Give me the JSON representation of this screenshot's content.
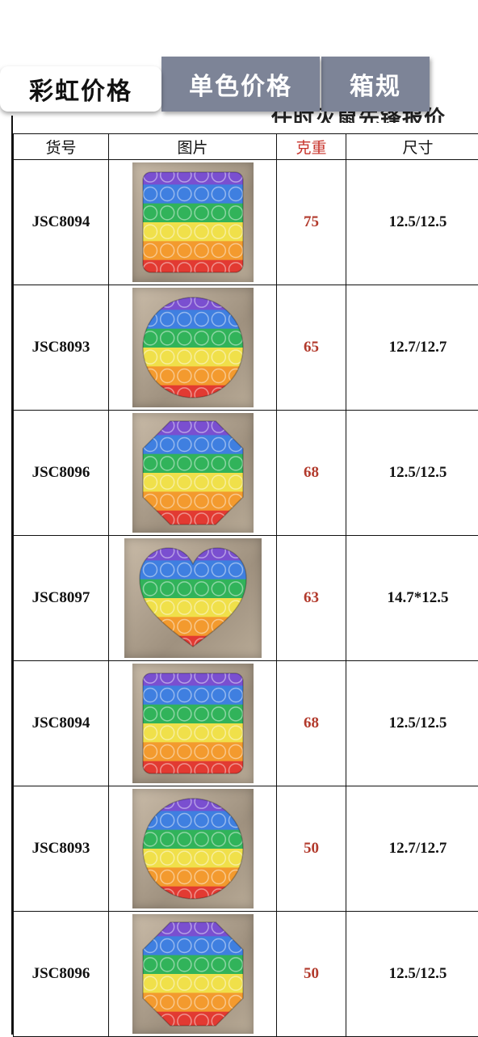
{
  "tabs": [
    {
      "label": "彩虹价格",
      "active": true
    },
    {
      "label": "单色价格",
      "active": false
    },
    {
      "label": "箱规",
      "active": false
    }
  ],
  "sheet_heading": "任时灭鼠先锋报价",
  "table": {
    "headers": [
      "货号",
      "图片",
      "克重",
      "尺寸"
    ],
    "rows": [
      {
        "code": "JSC8094",
        "shape": "square",
        "weight": "75",
        "size": "12.5/12.5"
      },
      {
        "code": "JSC8093",
        "shape": "circle",
        "weight": "65",
        "size": "12.7/12.7"
      },
      {
        "code": "JSC8096",
        "shape": "octagon",
        "weight": "68",
        "size": "12.5/12.5"
      },
      {
        "code": "JSC8097",
        "shape": "heart",
        "weight": "63",
        "size": "14.7*12.5"
      },
      {
        "code": "JSC8094",
        "shape": "square",
        "weight": "68",
        "size": "12.5/12.5"
      },
      {
        "code": "JSC8093",
        "shape": "circle",
        "weight": "50",
        "size": "12.7/12.7"
      },
      {
        "code": "JSC8096",
        "shape": "octagon",
        "weight": "50",
        "size": "12.5/12.5"
      }
    ]
  },
  "colors": {
    "tab_inactive": "#7d8497",
    "weight_text": "#b23a2c",
    "rainbow": [
      "#7a4fd0",
      "#3f7fe0",
      "#31b35a",
      "#f0e04a",
      "#f39a2e",
      "#e23a32"
    ]
  }
}
